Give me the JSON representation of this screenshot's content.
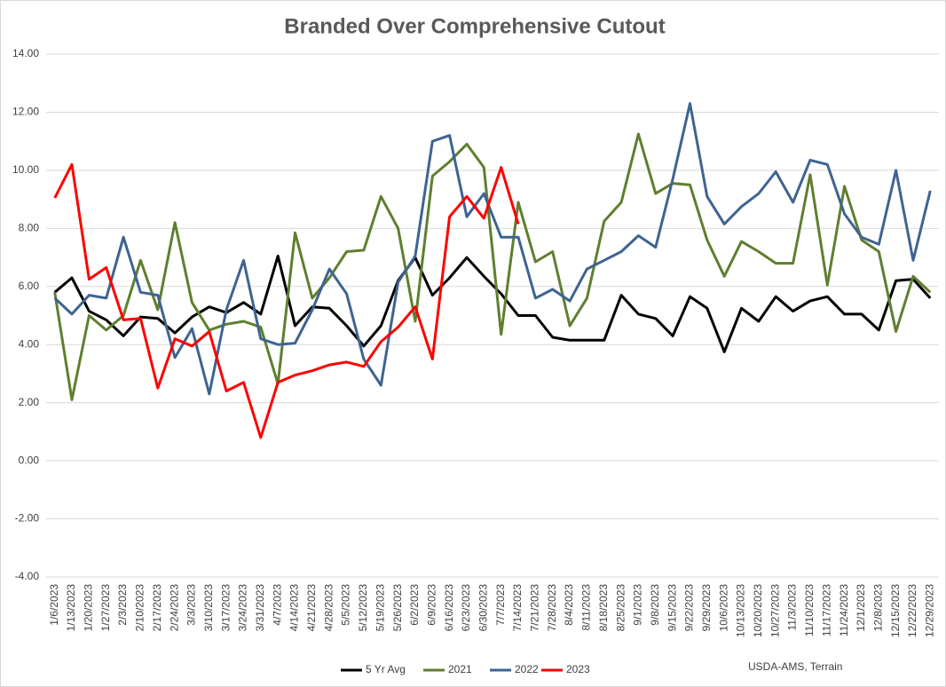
{
  "chart_data": {
    "type": "line",
    "title": "Branded Over Comprehensive Cutout",
    "source": "USDA-AMS, Terrain",
    "categories": [
      "1/6/2023",
      "1/13/2023",
      "1/20/2023",
      "1/27/2023",
      "2/3/2023",
      "2/10/2023",
      "2/17/2023",
      "2/24/2023",
      "3/3/2023",
      "3/10/2023",
      "3/17/2023",
      "3/24/2023",
      "3/31/2023",
      "4/7/2023",
      "4/14/2023",
      "4/21/2023",
      "4/28/2023",
      "5/5/2023",
      "5/12/2023",
      "5/19/2023",
      "5/26/2023",
      "6/2/2023",
      "6/9/2023",
      "6/16/2023",
      "6/23/2023",
      "6/30/2023",
      "7/7/2023",
      "7/14/2023",
      "7/21/2023",
      "7/28/2023",
      "8/4/2023",
      "8/11/2023",
      "8/18/2023",
      "8/25/2023",
      "9/1/2023",
      "9/8/2023",
      "9/15/2023",
      "9/22/2023",
      "9/29/2023",
      "10/6/2023",
      "10/13/2023",
      "10/20/2023",
      "10/27/2023",
      "11/3/2023",
      "11/10/2023",
      "11/17/2023",
      "11/24/2023",
      "12/1/2023",
      "12/8/2023",
      "12/15/2023",
      "12/22/2023",
      "12/29/2023"
    ],
    "series": [
      {
        "name": "5 Yr Avg",
        "color": "#000000",
        "values": [
          5.8,
          6.3,
          5.15,
          4.85,
          4.3,
          4.95,
          4.9,
          4.4,
          4.95,
          5.3,
          5.1,
          5.45,
          5.05,
          7.05,
          4.65,
          5.3,
          5.25,
          4.65,
          3.95,
          4.65,
          6.2,
          7.0,
          5.7,
          6.3,
          7.0,
          6.35,
          5.75,
          5.0,
          5.0,
          4.25,
          4.15,
          4.15,
          4.15,
          5.7,
          5.05,
          4.9,
          4.3,
          5.65,
          5.25,
          3.75,
          5.25,
          4.8,
          5.65,
          5.15,
          5.5,
          5.65,
          5.05,
          5.05,
          4.5,
          6.2,
          6.25,
          5.6
        ]
      },
      {
        "name": "2021",
        "color": "#5f7f2f",
        "values": [
          5.8,
          2.1,
          5.0,
          4.5,
          5.0,
          6.9,
          5.2,
          8.2,
          5.45,
          4.5,
          4.7,
          4.8,
          4.6,
          2.65,
          7.85,
          5.6,
          6.3,
          7.2,
          7.25,
          9.1,
          8.0,
          4.8,
          9.8,
          10.3,
          10.9,
          10.1,
          4.35,
          8.9,
          6.85,
          7.2,
          4.65,
          5.6,
          8.25,
          8.9,
          11.25,
          9.2,
          9.55,
          9.5,
          7.6,
          6.35,
          7.55,
          7.2,
          6.8,
          6.8,
          9.85,
          6.05,
          9.45,
          7.6,
          7.2,
          4.45,
          6.35,
          5.8
        ]
      },
      {
        "name": "2022",
        "color": "#3e6491",
        "values": [
          5.6,
          5.05,
          5.7,
          5.6,
          7.7,
          5.8,
          5.7,
          3.55,
          4.55,
          2.3,
          5.2,
          6.9,
          4.2,
          4.0,
          4.05,
          5.2,
          6.6,
          5.75,
          3.5,
          2.6,
          6.15,
          7.05,
          11.0,
          11.2,
          8.4,
          9.2,
          7.7,
          7.7,
          5.6,
          5.9,
          5.5,
          6.6,
          6.9,
          7.2,
          7.75,
          7.35,
          9.7,
          12.3,
          9.1,
          8.15,
          8.75,
          9.2,
          9.95,
          8.9,
          10.35,
          10.2,
          8.5,
          7.7,
          7.45,
          10.0,
          6.9,
          9.3
        ]
      },
      {
        "name": "2023",
        "color": "#ff0000",
        "values": [
          9.05,
          10.2,
          6.25,
          6.65,
          4.85,
          4.9,
          2.5,
          4.2,
          3.95,
          4.45,
          2.4,
          2.7,
          0.8,
          2.7,
          2.95,
          3.1,
          3.3,
          3.4,
          3.25,
          4.1,
          4.6,
          5.3,
          3.5,
          8.4,
          9.1,
          8.35,
          10.1,
          8.15,
          null,
          null,
          null,
          null,
          null,
          null,
          null,
          null,
          null,
          null,
          null,
          null,
          null,
          null,
          null,
          null,
          null,
          null,
          null,
          null,
          null,
          null,
          null,
          null
        ]
      }
    ],
    "ylim": [
      -4,
      14
    ],
    "yticks": [
      {
        "value": -4,
        "label": "-4.00"
      },
      {
        "value": -2,
        "label": "-2.00"
      },
      {
        "value": 0,
        "label": "0.00"
      },
      {
        "value": 2,
        "label": "2.00"
      },
      {
        "value": 4,
        "label": "4.00"
      },
      {
        "value": 6,
        "label": "6.00"
      },
      {
        "value": 8,
        "label": "8.00"
      },
      {
        "value": 10,
        "label": "10.00"
      },
      {
        "value": 12,
        "label": "12.00"
      },
      {
        "value": 14,
        "label": "14.00"
      }
    ],
    "grid": true,
    "legend": "bottom"
  }
}
